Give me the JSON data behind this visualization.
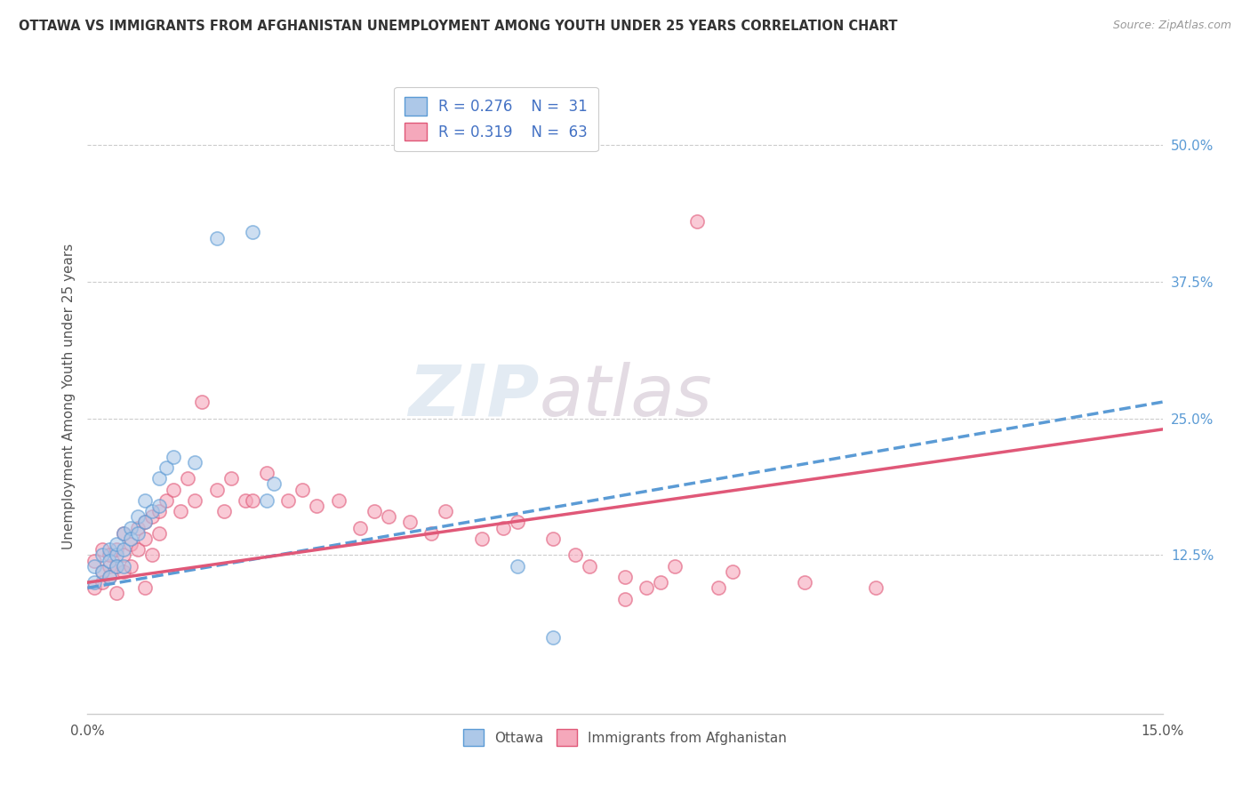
{
  "title": "OTTAWA VS IMMIGRANTS FROM AFGHANISTAN UNEMPLOYMENT AMONG YOUTH UNDER 25 YEARS CORRELATION CHART",
  "source": "Source: ZipAtlas.com",
  "ylabel": "Unemployment Among Youth under 25 years",
  "xlim": [
    0.0,
    0.15
  ],
  "ylim": [
    -0.02,
    0.56
  ],
  "ytick_labels_right": [
    "12.5%",
    "25.0%",
    "37.5%",
    "50.0%"
  ],
  "ytick_vals_right": [
    0.125,
    0.25,
    0.375,
    0.5
  ],
  "legend_r1": "R = 0.276",
  "legend_n1": "N = 31",
  "legend_r2": "R = 0.319",
  "legend_n2": "N = 63",
  "ottawa_color": "#adc8e8",
  "afghanistan_color": "#f5a8bb",
  "ottawa_line_color": "#5b9bd5",
  "afghanistan_line_color": "#e05878",
  "background_color": "#ffffff",
  "ottawa_x": [
    0.001,
    0.001,
    0.002,
    0.002,
    0.003,
    0.003,
    0.003,
    0.004,
    0.004,
    0.004,
    0.005,
    0.005,
    0.005,
    0.006,
    0.006,
    0.007,
    0.007,
    0.008,
    0.008,
    0.009,
    0.01,
    0.01,
    0.011,
    0.012,
    0.015,
    0.018,
    0.023,
    0.025,
    0.026,
    0.06,
    0.065
  ],
  "ottawa_y": [
    0.115,
    0.1,
    0.125,
    0.11,
    0.13,
    0.12,
    0.105,
    0.125,
    0.115,
    0.135,
    0.13,
    0.145,
    0.115,
    0.15,
    0.14,
    0.16,
    0.145,
    0.175,
    0.155,
    0.165,
    0.17,
    0.195,
    0.205,
    0.215,
    0.21,
    0.415,
    0.42,
    0.175,
    0.19,
    0.115,
    0.05
  ],
  "afghanistan_x": [
    0.001,
    0.001,
    0.002,
    0.002,
    0.002,
    0.003,
    0.003,
    0.003,
    0.004,
    0.004,
    0.004,
    0.005,
    0.005,
    0.005,
    0.006,
    0.006,
    0.007,
    0.007,
    0.008,
    0.008,
    0.008,
    0.009,
    0.009,
    0.01,
    0.01,
    0.011,
    0.012,
    0.013,
    0.014,
    0.015,
    0.016,
    0.018,
    0.019,
    0.02,
    0.022,
    0.023,
    0.025,
    0.028,
    0.03,
    0.032,
    0.035,
    0.038,
    0.04,
    0.042,
    0.045,
    0.048,
    0.05,
    0.055,
    0.058,
    0.06,
    0.065,
    0.068,
    0.07,
    0.075,
    0.078,
    0.08,
    0.082,
    0.085,
    0.088,
    0.09,
    0.075,
    0.1,
    0.11
  ],
  "afghanistan_y": [
    0.12,
    0.095,
    0.11,
    0.13,
    0.1,
    0.115,
    0.105,
    0.125,
    0.13,
    0.115,
    0.09,
    0.125,
    0.145,
    0.11,
    0.135,
    0.115,
    0.15,
    0.13,
    0.155,
    0.14,
    0.095,
    0.16,
    0.125,
    0.165,
    0.145,
    0.175,
    0.185,
    0.165,
    0.195,
    0.175,
    0.265,
    0.185,
    0.165,
    0.195,
    0.175,
    0.175,
    0.2,
    0.175,
    0.185,
    0.17,
    0.175,
    0.15,
    0.165,
    0.16,
    0.155,
    0.145,
    0.165,
    0.14,
    0.15,
    0.155,
    0.14,
    0.125,
    0.115,
    0.105,
    0.095,
    0.1,
    0.115,
    0.43,
    0.095,
    0.11,
    0.085,
    0.1,
    0.095
  ],
  "ottawa_trendline_x": [
    0.0,
    0.15
  ],
  "ottawa_trendline_y": [
    0.095,
    0.265
  ],
  "afghanistan_trendline_x": [
    0.0,
    0.15
  ],
  "afghanistan_trendline_y": [
    0.1,
    0.24
  ]
}
